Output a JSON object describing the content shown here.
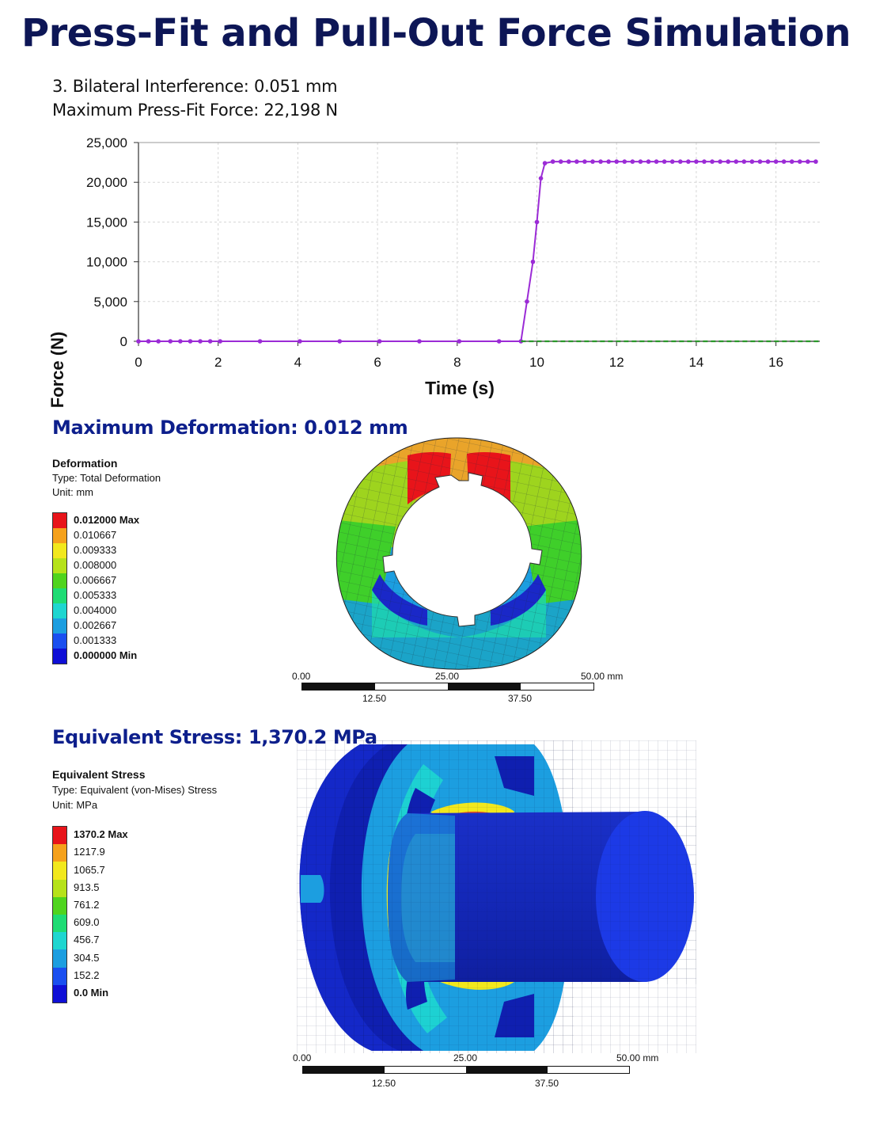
{
  "title": "Press-Fit and Pull-Out Force Simulation",
  "info": {
    "interference": "3. Bilateral Interference: 0.051 mm",
    "max_force": "Maximum Press-Fit Force: 22,198 N"
  },
  "chart_data": {
    "type": "line",
    "title": "",
    "xlabel": "Time (s)",
    "ylabel": "Force (N)",
    "xlim": [
      0,
      17.1
    ],
    "ylim": [
      0,
      25000
    ],
    "x_ticks": [
      0,
      2,
      4,
      6,
      8,
      10,
      12,
      14,
      16
    ],
    "y_ticks": [
      0,
      5000,
      10000,
      15000,
      20000,
      25000
    ],
    "x_tick_labels": [
      "0",
      "2",
      "4",
      "6",
      "8",
      "10",
      "12",
      "14",
      "16"
    ],
    "y_tick_labels": [
      "0",
      "5,000",
      "10,000",
      "15,000",
      "20,000",
      "25,000"
    ],
    "grid": true,
    "legend": "none",
    "series": [
      {
        "color": "#9b2bd6",
        "style": "solid-with-markers",
        "x": [
          0,
          0.25,
          0.5,
          0.8,
          1.05,
          1.3,
          1.55,
          1.8,
          2.05,
          3.05,
          4.05,
          5.05,
          6.05,
          7.05,
          8.05,
          9.05,
          9.6,
          9.75,
          9.9,
          10.0,
          10.1,
          10.2,
          10.4,
          10.6,
          10.8,
          11.0,
          11.2,
          11.4,
          11.6,
          11.8,
          12.0,
          12.2,
          12.4,
          12.6,
          12.8,
          13.0,
          13.2,
          13.4,
          13.6,
          13.8,
          14.0,
          14.2,
          14.4,
          14.6,
          14.8,
          15.0,
          15.2,
          15.4,
          15.6,
          15.8,
          16.0,
          16.2,
          16.4,
          16.6,
          16.8,
          17.0
        ],
        "y": [
          0,
          0,
          0,
          0,
          0,
          0,
          0,
          0,
          0,
          0,
          0,
          0,
          0,
          0,
          0,
          0,
          0,
          5000,
          10000,
          15000,
          20500,
          22400,
          22600,
          22600,
          22600,
          22600,
          22600,
          22600,
          22600,
          22600,
          22600,
          22600,
          22600,
          22600,
          22600,
          22600,
          22600,
          22600,
          22600,
          22600,
          22600,
          22600,
          22600,
          22600,
          22600,
          22600,
          22600,
          22600,
          22600,
          22600,
          22600,
          22600,
          22600,
          22600,
          22600,
          22600
        ]
      },
      {
        "color": "#2a9a2a",
        "style": "dashed",
        "x": [
          9.6,
          17.1
        ],
        "y": [
          0,
          0
        ]
      }
    ]
  },
  "deformation": {
    "title": "Maximum Deformation: 0.012 mm",
    "legend_title": "Deformation",
    "legend_type": "Type: Total Deformation",
    "legend_unit": "Unit: mm",
    "legend_labels": [
      "0.012000 Max",
      "0.010667",
      "0.009333",
      "0.008000",
      "0.006667",
      "0.005333",
      "0.004000",
      "0.002667",
      "0.001333",
      "0.000000 Min"
    ],
    "legend_colors": [
      "#e8141a",
      "#f5a11c",
      "#f2e81d",
      "#b6e21a",
      "#4fd41e",
      "#1edc74",
      "#1ed6d0",
      "#1c9ee0",
      "#1a4ff0",
      "#0f0fd6"
    ],
    "scale_top_labels": [
      "0.00",
      "25.00",
      "50.00 mm"
    ],
    "scale_bottom_labels": [
      "12.50",
      "37.50"
    ]
  },
  "stress": {
    "title": "Equivalent Stress: 1,370.2 MPa",
    "legend_title": "Equivalent Stress",
    "legend_type": "Type: Equivalent (von-Mises) Stress",
    "legend_unit": "Unit: MPa",
    "legend_labels": [
      "1370.2 Max",
      "1217.9",
      "1065.7",
      "913.5",
      "761.2",
      "609.0",
      "456.7",
      "304.5",
      "152.2",
      "0.0 Min"
    ],
    "legend_colors": [
      "#e8141a",
      "#f5a11c",
      "#f2e81d",
      "#b6e21a",
      "#4fd41e",
      "#1edc74",
      "#1ed6d0",
      "#1c9ee0",
      "#1a4ff0",
      "#0f0fd6"
    ],
    "scale_top_labels": [
      "0.00",
      "25.00",
      "50.00 mm"
    ],
    "scale_bottom_labels": [
      "12.50",
      "37.50"
    ]
  }
}
